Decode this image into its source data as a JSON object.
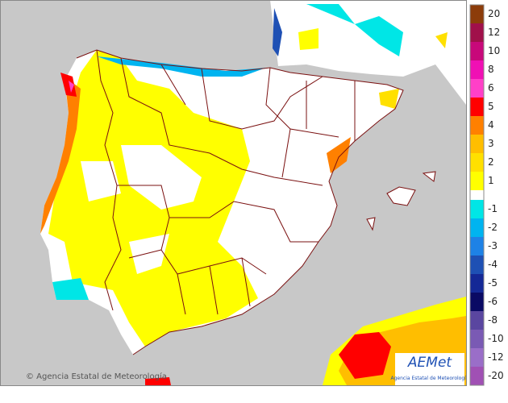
{
  "credit": "© Agencia Estatal de Meteorología",
  "logo": {
    "name": "AEMet",
    "subtitle": "Agencia Estatal de Meteorología"
  },
  "legend": {
    "items": [
      {
        "label": "20",
        "color": "#8c3c0a"
      },
      {
        "label": "12",
        "color": "#a0104a"
      },
      {
        "label": "10",
        "color": "#c8087a"
      },
      {
        "label": "8",
        "color": "#f010b4"
      },
      {
        "label": "6",
        "color": "#ff40c8"
      },
      {
        "label": "5",
        "color": "#ff0000"
      },
      {
        "label": "4",
        "color": "#ff8000"
      },
      {
        "label": "3",
        "color": "#ffbe00"
      },
      {
        "label": "2",
        "color": "#ffe000"
      },
      {
        "label": "1",
        "color": "#ffff00"
      },
      {
        "label": "-1",
        "color": "#00e6e6"
      },
      {
        "label": "-2",
        "color": "#00b4f0"
      },
      {
        "label": "-3",
        "color": "#1e82e6"
      },
      {
        "label": "-4",
        "color": "#1e50b4"
      },
      {
        "label": "-5",
        "color": "#142896"
      },
      {
        "label": "-6",
        "color": "#0a0a64"
      },
      {
        "label": "-8",
        "color": "#5a46a0"
      },
      {
        "label": "-10",
        "color": "#7a5ab4"
      },
      {
        "label": "-12",
        "color": "#9a6ec8"
      },
      {
        "label": "-20",
        "color": "#a050b4"
      }
    ]
  }
}
